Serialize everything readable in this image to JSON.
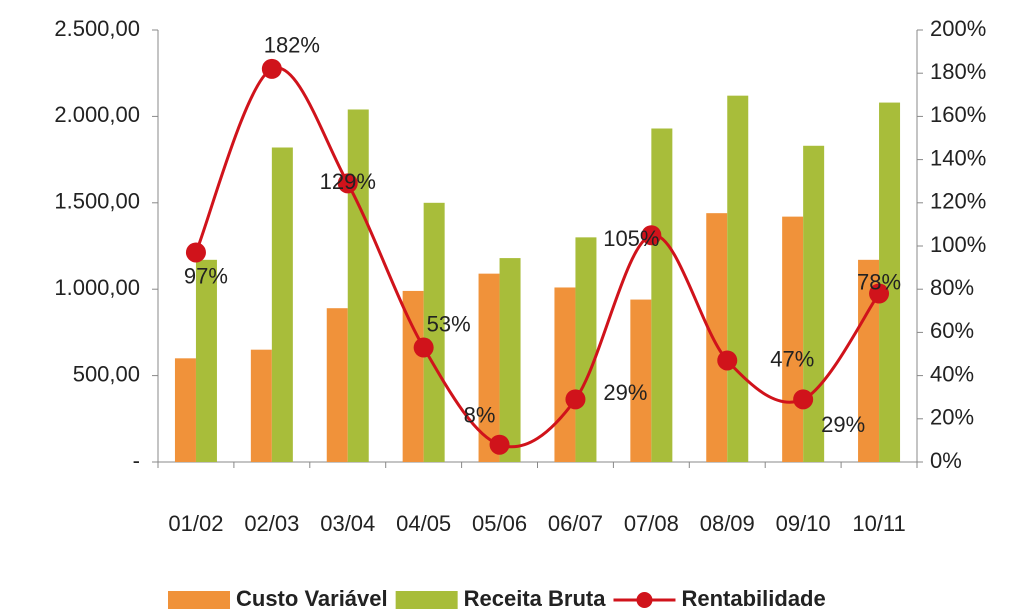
{
  "chart_data": {
    "type": "bar-line",
    "categories": [
      "01/02",
      "02/03",
      "03/04",
      "04/05",
      "05/06",
      "06/07",
      "07/08",
      "08/09",
      "09/10",
      "10/11"
    ],
    "series": [
      {
        "name": "Custo Variável",
        "type": "bar",
        "color": "#f0923a",
        "values": [
          600,
          650,
          890,
          990,
          1090,
          1010,
          940,
          1440,
          1420,
          1170
        ]
      },
      {
        "name": "Receita Bruta",
        "type": "bar",
        "color": "#a8bd3a",
        "values": [
          1170,
          1820,
          2040,
          1500,
          1180,
          1300,
          1930,
          2120,
          1830,
          2080
        ]
      },
      {
        "name": "Rentabilidade",
        "type": "line",
        "axis": "y2",
        "color": "#d0131b",
        "values": [
          97,
          182,
          129,
          53,
          8,
          29,
          105,
          47,
          29,
          78
        ],
        "value_labels": [
          "97%",
          "182%",
          "129%",
          "53%",
          "8%",
          "29%",
          "105%",
          "47%",
          "29%",
          "78%"
        ]
      }
    ],
    "ylim": [
      0,
      2500
    ],
    "yticks": [
      {
        "value": 0,
        "label": "-"
      },
      {
        "value": 500,
        "label": "500,00"
      },
      {
        "value": 1000,
        "label": "1.000,00"
      },
      {
        "value": 1500,
        "label": "1.500,00"
      },
      {
        "value": 2000,
        "label": "2.000,00"
      },
      {
        "value": 2500,
        "label": "2.500,00"
      }
    ],
    "y2lim": [
      0,
      200
    ],
    "y2ticks": [
      {
        "value": 0,
        "label": "0%"
      },
      {
        "value": 20,
        "label": "20%"
      },
      {
        "value": 40,
        "label": "40%"
      },
      {
        "value": 60,
        "label": "60%"
      },
      {
        "value": 80,
        "label": "80%"
      },
      {
        "value": 100,
        "label": "100%"
      },
      {
        "value": 120,
        "label": "120%"
      },
      {
        "value": 140,
        "label": "140%"
      },
      {
        "value": 160,
        "label": "160%"
      },
      {
        "value": 180,
        "label": "180%"
      },
      {
        "value": 200,
        "label": "200%"
      }
    ],
    "grid": false
  }
}
